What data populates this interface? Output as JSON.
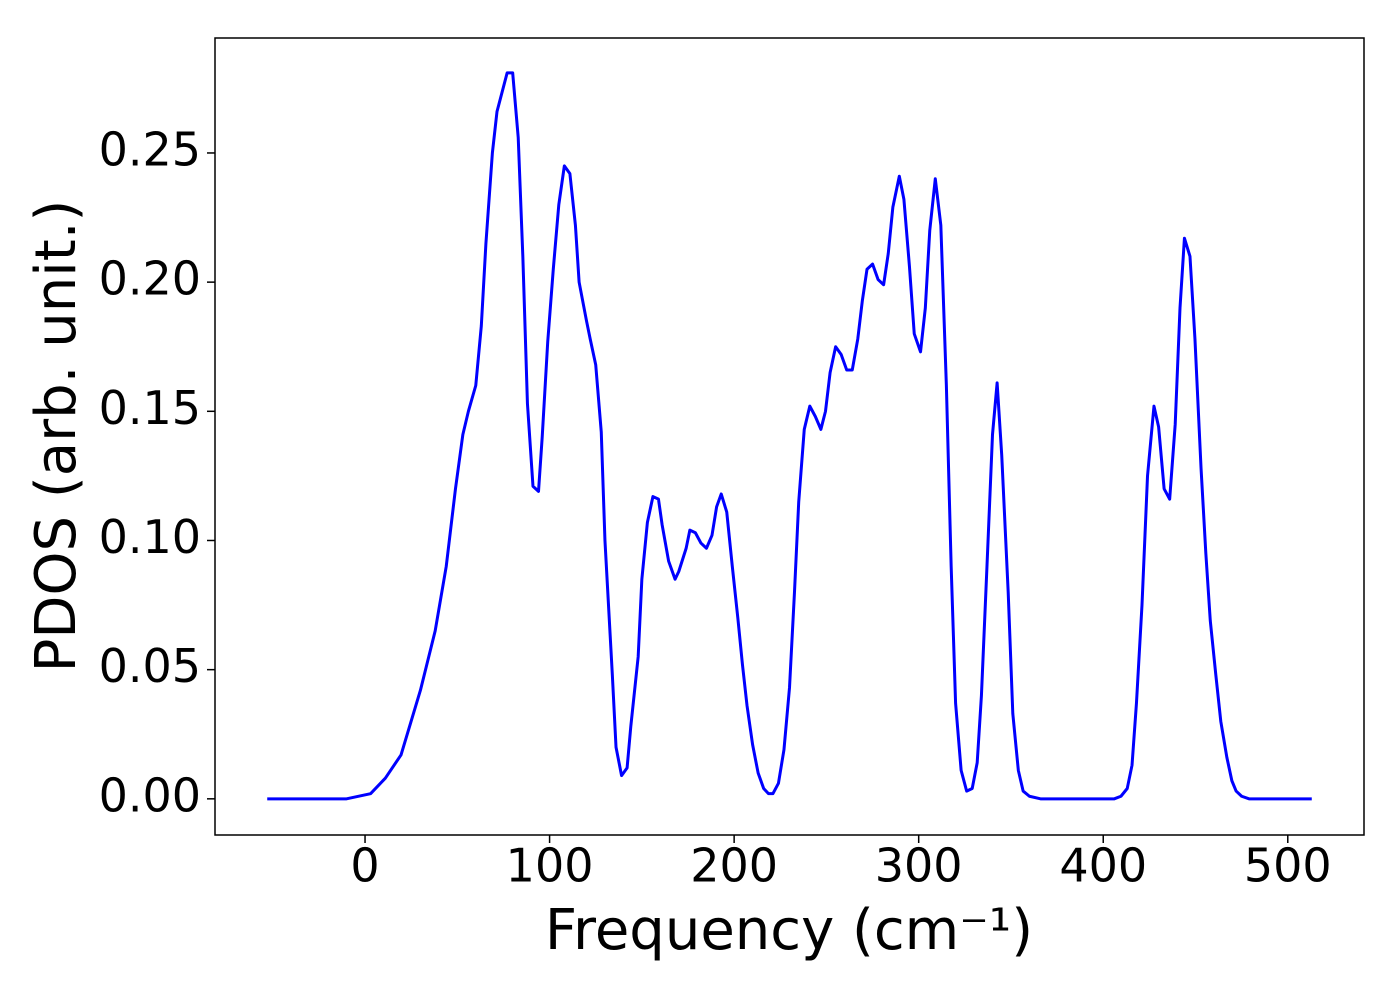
{
  "chart_data": {
    "type": "line",
    "xlabel": "Frequency (cm⁻¹)",
    "ylabel": "PDOS (arb. unit.)",
    "color": "#0000ff",
    "xlim": [
      -81.3,
      541.3
    ],
    "ylim": [
      -0.014,
      0.2945
    ],
    "xticks": [
      0,
      100,
      200,
      300,
      400,
      500
    ],
    "yticks": [
      {
        "value": 0,
        "label": "0.00"
      },
      0.05,
      {
        "value": 0.1,
        "label": "0.10"
      },
      0.15,
      {
        "value": 0.2,
        "label": "0.20"
      },
      0.25
    ],
    "x": [
      -53,
      -10,
      3,
      11,
      19.5,
      30,
      38,
      44,
      49,
      53,
      56,
      60,
      63,
      65.5,
      69,
      71.5,
      77,
      80,
      83,
      85.5,
      88,
      91,
      94,
      96,
      99,
      102,
      105,
      108,
      111,
      114,
      116,
      120,
      122,
      125,
      128,
      130,
      134,
      136,
      139,
      142,
      144,
      148,
      150,
      153,
      156,
      159,
      161,
      164.5,
      168,
      170,
      174,
      176,
      179,
      182,
      185,
      188,
      190.5,
      193,
      196,
      199,
      202,
      204.5,
      207,
      210,
      213,
      216,
      218.6,
      221,
      224,
      227,
      230,
      232.7,
      235,
      238,
      241,
      244,
      247,
      249.5,
      252,
      255,
      258,
      261,
      264,
      267,
      269.5,
      272,
      275,
      278,
      281,
      283.5,
      286,
      289.5,
      292,
      295,
      297.6,
      301,
      303.6,
      306,
      309,
      312,
      315,
      317.6,
      320,
      323,
      326,
      329,
      331.7,
      334,
      337,
      340,
      342.5,
      345,
      348.5,
      351,
      354,
      356.6,
      360,
      366,
      406,
      409.6,
      413,
      415.6,
      418,
      421,
      424,
      427.5,
      430,
      433,
      436,
      439,
      441.6,
      444,
      447,
      449.7,
      453,
      455.6,
      458,
      461,
      463.7,
      467,
      469.7,
      472,
      475,
      479,
      513
    ],
    "values": [
      0,
      0,
      0.002,
      0.008,
      0.017,
      0.042,
      0.065,
      0.09,
      0.12,
      0.141,
      0.15,
      0.16,
      0.183,
      0.215,
      0.25,
      0.266,
      0.281,
      0.281,
      0.256,
      0.21,
      0.153,
      0.121,
      0.119,
      0.14,
      0.177,
      0.205,
      0.23,
      0.245,
      0.242,
      0.222,
      0.2,
      0.185,
      0.178,
      0.168,
      0.142,
      0.1,
      0.048,
      0.02,
      0.009,
      0.012,
      0.028,
      0.055,
      0.085,
      0.107,
      0.117,
      0.116,
      0.106,
      0.092,
      0.085,
      0.088,
      0.097,
      0.104,
      0.103,
      0.099,
      0.097,
      0.102,
      0.113,
      0.118,
      0.111,
      0.09,
      0.07,
      0.052,
      0.036,
      0.021,
      0.01,
      0.004,
      0.002,
      0.002,
      0.006,
      0.019,
      0.043,
      0.08,
      0.115,
      0.143,
      0.152,
      0.148,
      0.143,
      0.15,
      0.165,
      0.175,
      0.172,
      0.166,
      0.166,
      0.178,
      0.193,
      0.205,
      0.207,
      0.201,
      0.199,
      0.211,
      0.229,
      0.241,
      0.232,
      0.206,
      0.18,
      0.173,
      0.19,
      0.22,
      0.24,
      0.222,
      0.16,
      0.09,
      0.037,
      0.011,
      0.003,
      0.004,
      0.014,
      0.04,
      0.09,
      0.141,
      0.161,
      0.133,
      0.08,
      0.033,
      0.011,
      0.003,
      0.001,
      0,
      0,
      0.001,
      0.004,
      0.013,
      0.037,
      0.075,
      0.125,
      0.152,
      0.144,
      0.12,
      0.116,
      0.145,
      0.19,
      0.217,
      0.21,
      0.178,
      0.128,
      0.095,
      0.069,
      0.048,
      0.03,
      0.016,
      0.007,
      0.003,
      0.001,
      0,
      0
    ]
  }
}
